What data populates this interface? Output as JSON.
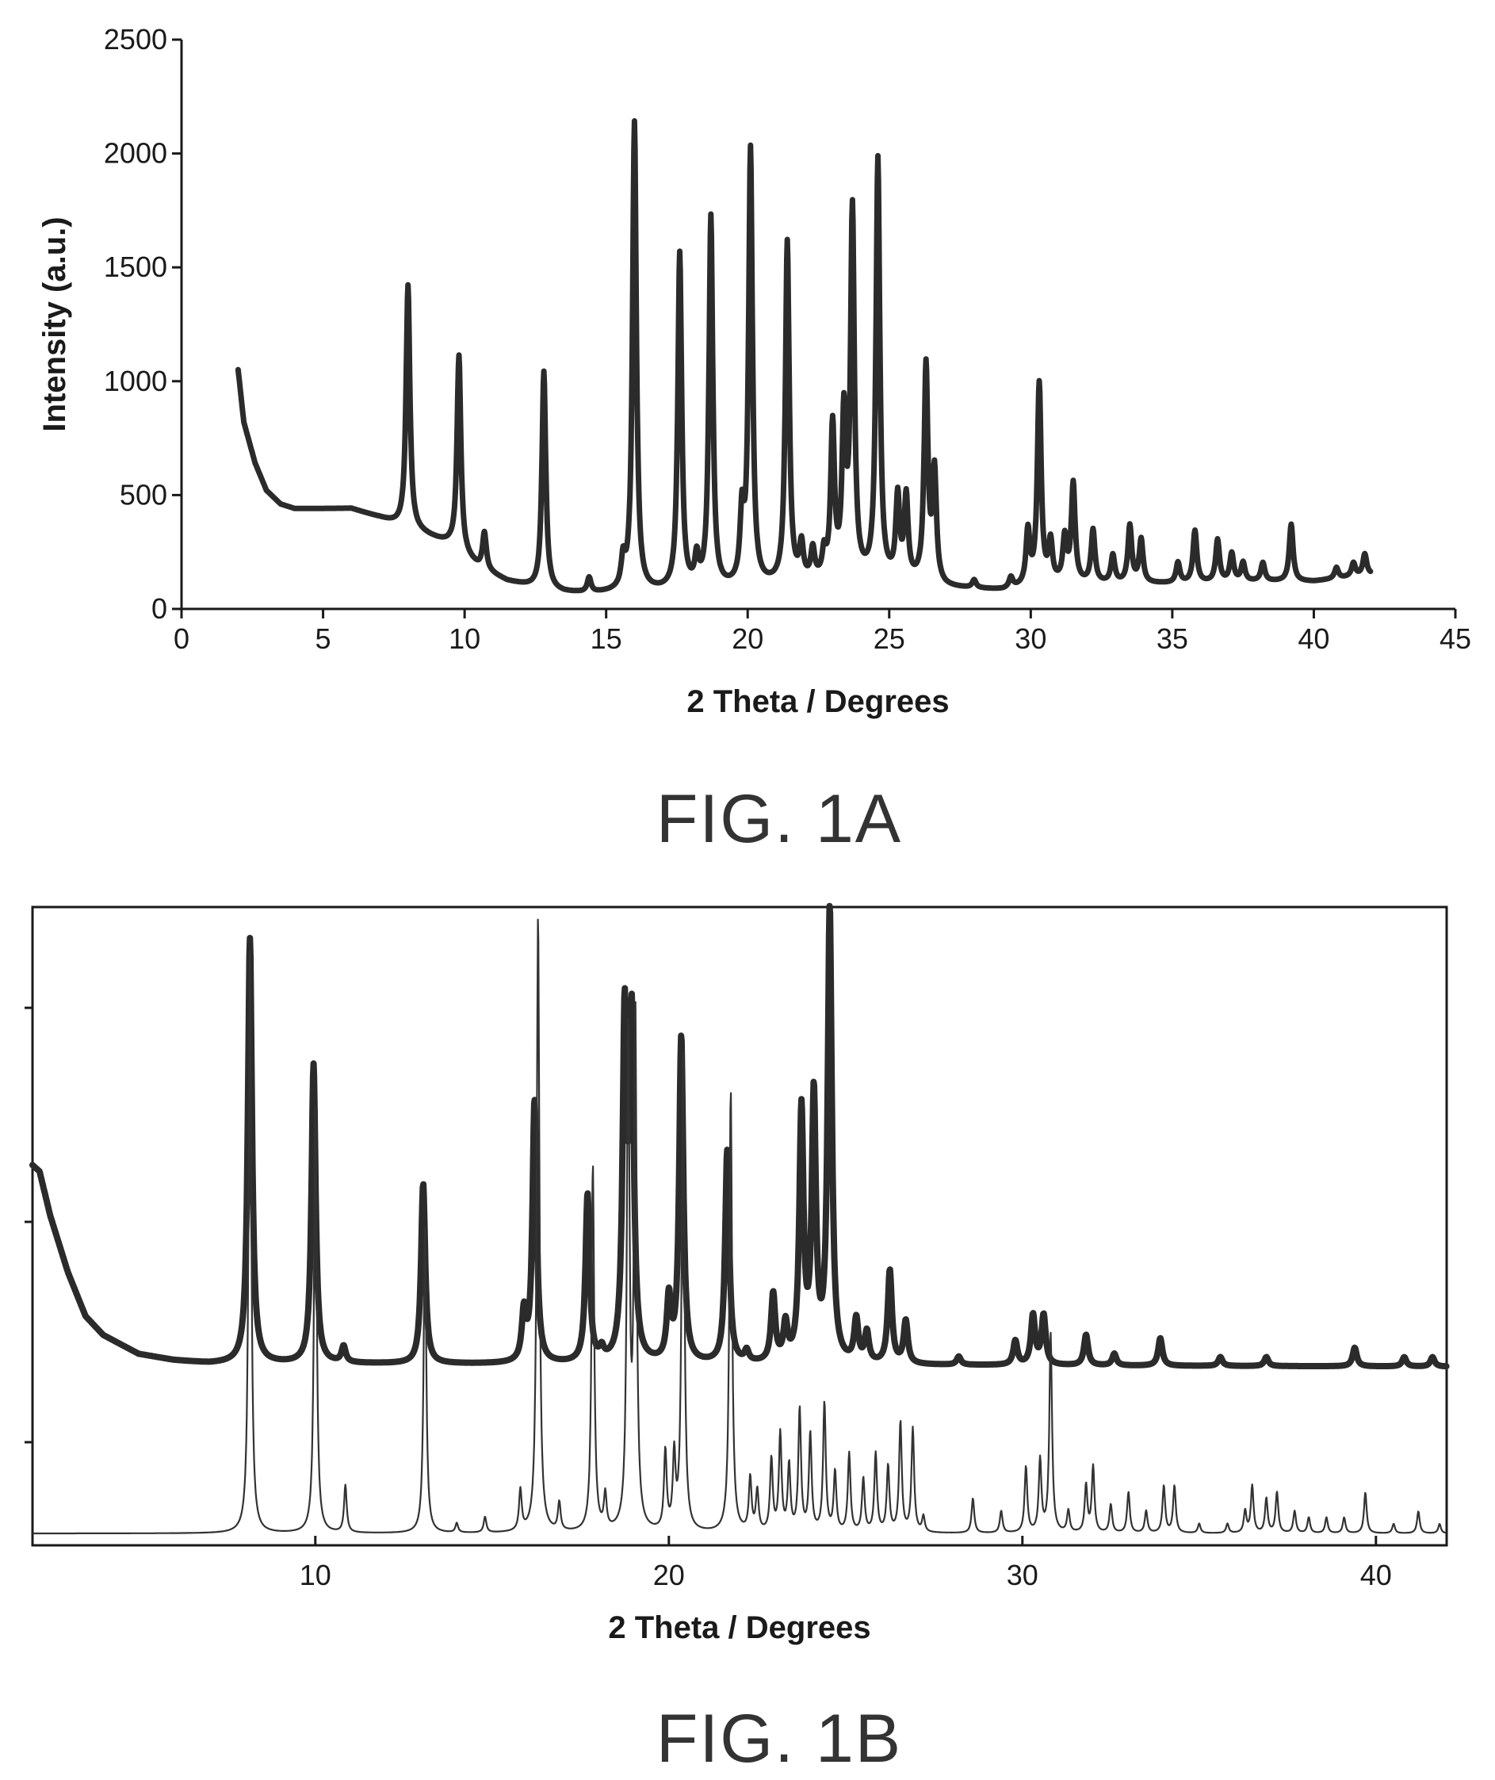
{
  "chart_data": [
    {
      "type": "line",
      "figure_label": "FIG. 1A",
      "title": "",
      "xlabel": "2 Theta / Degrees",
      "ylabel": "Intensity (a.u.)",
      "xlim": [
        0,
        45
      ],
      "ylim": [
        0,
        2500
      ],
      "xticks": [
        0,
        5,
        10,
        15,
        20,
        25,
        30,
        35,
        40,
        45
      ],
      "yticks": [
        0,
        500,
        1000,
        1500,
        2000,
        2500
      ],
      "grid": false,
      "legend": "none",
      "color": "#2b2b2b",
      "x_range": [
        2.0,
        42.0
      ],
      "background": [
        [
          2.0,
          1050
        ],
        [
          2.2,
          820
        ],
        [
          2.6,
          640
        ],
        [
          3.0,
          520
        ],
        [
          3.5,
          460
        ],
        [
          4.0,
          440
        ],
        [
          5.0,
          440
        ],
        [
          6.0,
          440
        ],
        [
          7.0,
          400
        ],
        [
          7.8,
          360
        ],
        [
          8.5,
          330
        ],
        [
          9.5,
          280
        ],
        [
          10.5,
          180
        ],
        [
          11.5,
          120
        ],
        [
          12.5,
          90
        ],
        [
          13.5,
          70
        ],
        [
          14.5,
          65
        ],
        [
          16,
          70
        ],
        [
          19,
          80
        ],
        [
          22,
          110
        ],
        [
          24,
          120
        ],
        [
          26,
          110
        ],
        [
          27,
          90
        ],
        [
          29,
          80
        ],
        [
          31,
          110
        ],
        [
          33,
          110
        ],
        [
          35,
          110
        ],
        [
          38,
          120
        ],
        [
          40,
          120
        ],
        [
          42,
          150
        ]
      ],
      "peaks": [
        {
          "x": 8.0,
          "y": 1420
        },
        {
          "x": 9.8,
          "y": 1110
        },
        {
          "x": 10.7,
          "y": 330
        },
        {
          "x": 12.8,
          "y": 1040
        },
        {
          "x": 14.4,
          "y": 130
        },
        {
          "x": 15.6,
          "y": 190
        },
        {
          "x": 16.0,
          "y": 2130
        },
        {
          "x": 17.6,
          "y": 1550
        },
        {
          "x": 18.2,
          "y": 200
        },
        {
          "x": 18.7,
          "y": 1710
        },
        {
          "x": 19.8,
          "y": 380
        },
        {
          "x": 20.1,
          "y": 2000
        },
        {
          "x": 21.4,
          "y": 1600
        },
        {
          "x": 21.9,
          "y": 260
        },
        {
          "x": 22.3,
          "y": 240
        },
        {
          "x": 22.7,
          "y": 220
        },
        {
          "x": 23.0,
          "y": 780
        },
        {
          "x": 23.4,
          "y": 800
        },
        {
          "x": 23.7,
          "y": 1720
        },
        {
          "x": 24.6,
          "y": 1960
        },
        {
          "x": 25.3,
          "y": 470
        },
        {
          "x": 25.6,
          "y": 470
        },
        {
          "x": 26.3,
          "y": 1050
        },
        {
          "x": 26.6,
          "y": 580
        },
        {
          "x": 28.0,
          "y": 120
        },
        {
          "x": 29.3,
          "y": 130
        },
        {
          "x": 29.9,
          "y": 330
        },
        {
          "x": 30.3,
          "y": 980
        },
        {
          "x": 30.7,
          "y": 280
        },
        {
          "x": 31.2,
          "y": 300
        },
        {
          "x": 31.5,
          "y": 540
        },
        {
          "x": 32.2,
          "y": 340
        },
        {
          "x": 32.9,
          "y": 230
        },
        {
          "x": 33.5,
          "y": 360
        },
        {
          "x": 33.9,
          "y": 300
        },
        {
          "x": 35.2,
          "y": 200
        },
        {
          "x": 35.8,
          "y": 340
        },
        {
          "x": 36.6,
          "y": 300
        },
        {
          "x": 37.1,
          "y": 240
        },
        {
          "x": 37.5,
          "y": 200
        },
        {
          "x": 38.2,
          "y": 200
        },
        {
          "x": 39.2,
          "y": 370
        },
        {
          "x": 40.8,
          "y": 180
        },
        {
          "x": 41.4,
          "y": 200
        },
        {
          "x": 41.8,
          "y": 240
        }
      ]
    },
    {
      "type": "line",
      "figure_label": "FIG. 1B",
      "title": "",
      "xlabel": "2 Theta / Degrees",
      "ylabel": "",
      "xlim": [
        2.0,
        42.0
      ],
      "ylim": [
        0,
        100
      ],
      "xticks": [
        10,
        20,
        30,
        40
      ],
      "ytick_positions": [
        16,
        51,
        85
      ],
      "grid": false,
      "legend": "none",
      "series": [
        {
          "style": "thick",
          "color": "#2b2b2b",
          "x_range": [
            2.0,
            42.0
          ],
          "background": [
            [
              2.0,
              60
            ],
            [
              2.2,
              59
            ],
            [
              2.5,
              52
            ],
            [
              3.0,
              43
            ],
            [
              3.5,
              36
            ],
            [
              4.0,
              33
            ],
            [
              5.0,
              30
            ],
            [
              6.0,
              29
            ],
            [
              7.0,
              28.5
            ],
            [
              42.0,
              28
            ]
          ],
          "peaks": [
            {
              "x": 8.15,
              "y": 96
            },
            {
              "x": 9.95,
              "y": 76
            },
            {
              "x": 10.8,
              "y": 31
            },
            {
              "x": 13.05,
              "y": 57
            },
            {
              "x": 15.9,
              "y": 36
            },
            {
              "x": 16.2,
              "y": 70
            },
            {
              "x": 17.7,
              "y": 55
            },
            {
              "x": 18.1,
              "y": 30
            },
            {
              "x": 18.75,
              "y": 82
            },
            {
              "x": 18.95,
              "y": 81
            },
            {
              "x": 20.0,
              "y": 38
            },
            {
              "x": 20.35,
              "y": 80
            },
            {
              "x": 21.65,
              "y": 62
            },
            {
              "x": 22.2,
              "y": 30
            },
            {
              "x": 22.95,
              "y": 39
            },
            {
              "x": 23.3,
              "y": 34
            },
            {
              "x": 23.75,
              "y": 68
            },
            {
              "x": 24.1,
              "y": 70
            },
            {
              "x": 24.55,
              "y": 100
            },
            {
              "x": 25.3,
              "y": 35
            },
            {
              "x": 25.6,
              "y": 33
            },
            {
              "x": 26.25,
              "y": 43
            },
            {
              "x": 26.7,
              "y": 35
            },
            {
              "x": 28.2,
              "y": 29.5
            },
            {
              "x": 29.8,
              "y": 32
            },
            {
              "x": 30.3,
              "y": 36
            },
            {
              "x": 30.6,
              "y": 36
            },
            {
              "x": 31.8,
              "y": 33
            },
            {
              "x": 32.6,
              "y": 30
            },
            {
              "x": 33.9,
              "y": 32.5
            },
            {
              "x": 35.6,
              "y": 29.5
            },
            {
              "x": 36.9,
              "y": 29.5
            },
            {
              "x": 39.4,
              "y": 31
            },
            {
              "x": 40.8,
              "y": 29.5
            },
            {
              "x": 41.6,
              "y": 29.5
            }
          ]
        },
        {
          "style": "thin",
          "color": "#333333",
          "x_range": [
            2.0,
            42.0
          ],
          "background": [
            [
              2.0,
              1.5
            ],
            [
              42.0,
              1.5
            ]
          ],
          "peaks": [
            {
              "x": 8.15,
              "y": 94
            },
            {
              "x": 10.0,
              "y": 70
            },
            {
              "x": 10.85,
              "y": 9
            },
            {
              "x": 13.1,
              "y": 50
            },
            {
              "x": 14.0,
              "y": 3
            },
            {
              "x": 14.8,
              "y": 4
            },
            {
              "x": 15.8,
              "y": 8
            },
            {
              "x": 16.3,
              "y": 100
            },
            {
              "x": 16.9,
              "y": 6
            },
            {
              "x": 17.85,
              "y": 60
            },
            {
              "x": 18.2,
              "y": 7
            },
            {
              "x": 18.85,
              "y": 80
            },
            {
              "x": 19.05,
              "y": 83
            },
            {
              "x": 19.9,
              "y": 14
            },
            {
              "x": 20.15,
              "y": 13
            },
            {
              "x": 20.4,
              "y": 78
            },
            {
              "x": 21.75,
              "y": 72
            },
            {
              "x": 22.3,
              "y": 10
            },
            {
              "x": 22.5,
              "y": 8
            },
            {
              "x": 22.9,
              "y": 13
            },
            {
              "x": 23.15,
              "y": 17
            },
            {
              "x": 23.4,
              "y": 12
            },
            {
              "x": 23.7,
              "y": 21
            },
            {
              "x": 24.0,
              "y": 17
            },
            {
              "x": 24.4,
              "y": 22
            },
            {
              "x": 24.7,
              "y": 11
            },
            {
              "x": 25.1,
              "y": 14
            },
            {
              "x": 25.5,
              "y": 10
            },
            {
              "x": 25.85,
              "y": 14
            },
            {
              "x": 26.2,
              "y": 12
            },
            {
              "x": 26.55,
              "y": 19
            },
            {
              "x": 26.9,
              "y": 18
            },
            {
              "x": 27.2,
              "y": 4
            },
            {
              "x": 28.6,
              "y": 7
            },
            {
              "x": 29.4,
              "y": 5
            },
            {
              "x": 30.1,
              "y": 12
            },
            {
              "x": 30.5,
              "y": 13
            },
            {
              "x": 30.8,
              "y": 33
            },
            {
              "x": 31.3,
              "y": 5
            },
            {
              "x": 31.8,
              "y": 9
            },
            {
              "x": 32.0,
              "y": 12
            },
            {
              "x": 32.5,
              "y": 6
            },
            {
              "x": 33.0,
              "y": 8
            },
            {
              "x": 33.5,
              "y": 5
            },
            {
              "x": 34.0,
              "y": 9
            },
            {
              "x": 34.3,
              "y": 9
            },
            {
              "x": 35.0,
              "y": 3
            },
            {
              "x": 35.8,
              "y": 3
            },
            {
              "x": 36.3,
              "y": 5
            },
            {
              "x": 36.5,
              "y": 9
            },
            {
              "x": 36.9,
              "y": 7
            },
            {
              "x": 37.2,
              "y": 8
            },
            {
              "x": 37.7,
              "y": 5
            },
            {
              "x": 38.1,
              "y": 4
            },
            {
              "x": 38.6,
              "y": 4
            },
            {
              "x": 39.1,
              "y": 4
            },
            {
              "x": 39.7,
              "y": 8
            },
            {
              "x": 40.5,
              "y": 3
            },
            {
              "x": 41.2,
              "y": 5
            },
            {
              "x": 41.8,
              "y": 3
            }
          ]
        }
      ]
    }
  ]
}
